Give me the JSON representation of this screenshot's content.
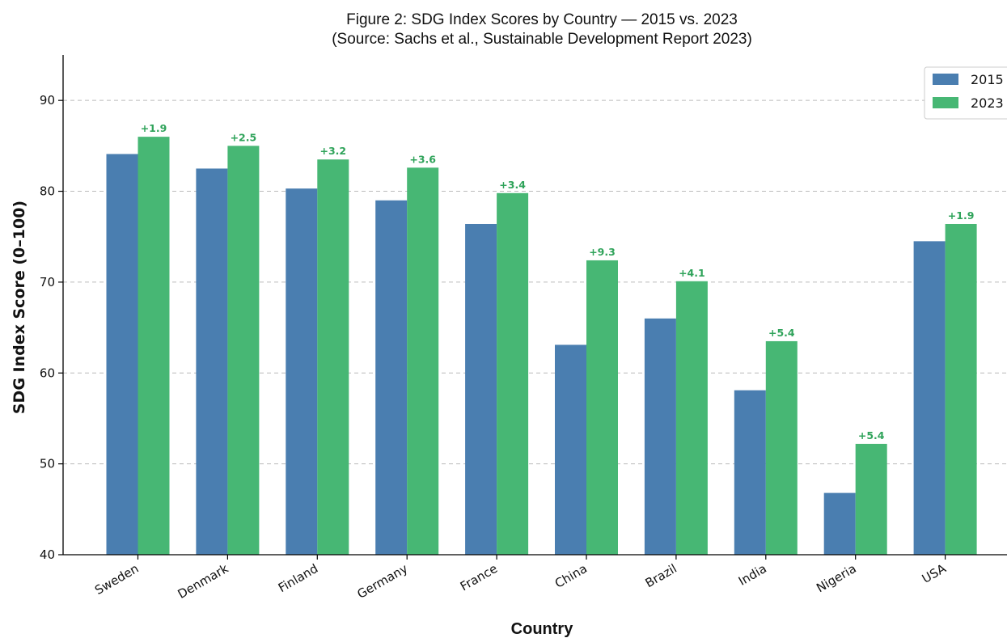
{
  "chart_data": {
    "type": "bar",
    "title_line1": "Figure 2: SDG Index Scores by Country — 2015 vs. 2023",
    "title_line2": "(Source: Sachs et al., Sustainable Development Report 2023)",
    "xlabel": "Country",
    "ylabel": "SDG Index Score (0–100)",
    "ylim": [
      40,
      95
    ],
    "yticks": [
      40,
      50,
      60,
      70,
      80,
      90
    ],
    "grid": "horizontal dashed",
    "legend_position": "top-right",
    "categories": [
      "Sweden",
      "Denmark",
      "Finland",
      "Germany",
      "France",
      "China",
      "Brazil",
      "India",
      "Nigeria",
      "USA"
    ],
    "series": [
      {
        "name": "2015",
        "color": "#4a7eb0",
        "values": [
          84.1,
          82.5,
          80.3,
          79.0,
          76.4,
          63.1,
          66.0,
          58.1,
          46.8,
          74.5
        ]
      },
      {
        "name": "2023",
        "color": "#47b774",
        "values": [
          86.0,
          85.0,
          83.5,
          82.6,
          79.8,
          72.4,
          70.1,
          63.5,
          52.2,
          76.4
        ]
      }
    ],
    "delta_labels": [
      "+1.9",
      "+2.5",
      "+3.2",
      "+3.6",
      "+3.4",
      "+9.3",
      "+4.1",
      "+5.4",
      "+5.4",
      "+1.9"
    ],
    "delta_color": "#2fa35a"
  }
}
